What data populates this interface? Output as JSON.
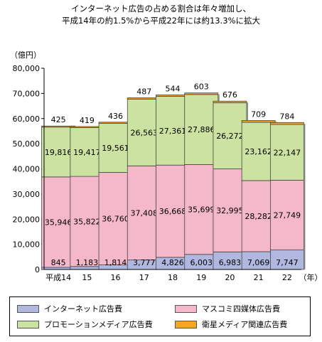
{
  "title": {
    "line1": "インターネット広告の占める割合は年々増加し、",
    "line2": "平成14年の約1.5%から平成22年には約13.3%に拡大"
  },
  "chart_data": {
    "type": "bar",
    "stacked": true,
    "ylabel": "（億円）",
    "xunit": "（年）",
    "ylim": [
      0,
      80000
    ],
    "yticks": [
      0,
      10000,
      20000,
      30000,
      40000,
      50000,
      60000,
      70000,
      80000
    ],
    "ytick_labels": [
      "0",
      "10,000",
      "20,000",
      "30,000",
      "40,000",
      "50,000",
      "60,000",
      "70,000",
      "80,000"
    ],
    "grid": false,
    "legend_position": "bottom",
    "categories": [
      "平成14",
      "15",
      "16",
      "17",
      "18",
      "19",
      "20",
      "21",
      "22"
    ],
    "series": [
      {
        "name": "インターネット広告費",
        "color": "#b0b8e0",
        "values": [
          845,
          1183,
          1814,
          3777,
          4826,
          6003,
          6983,
          7069,
          7747
        ],
        "labels": [
          "845",
          "1,183",
          "1,814",
          "3,777",
          "4,826",
          "6,003",
          "6,983",
          "7,069",
          "7,747"
        ]
      },
      {
        "name": "マスコミ四媒体広告費",
        "color": "#f5b8c8",
        "values": [
          35946,
          35822,
          36760,
          37408,
          36668,
          35699,
          32995,
          28282,
          27749
        ],
        "labels": [
          "35,946",
          "35,822",
          "36,760",
          "37,408",
          "36,668",
          "35,699",
          "32,995",
          "28,282",
          "27,749"
        ]
      },
      {
        "name": "プロモーションメディア広告費",
        "color": "#cce2a0",
        "values": [
          19816,
          19417,
          19561,
          26563,
          27361,
          27886,
          26272,
          23162,
          22147
        ],
        "labels": [
          "19,816",
          "19,417",
          "19,561",
          "26,563",
          "27,361",
          "27,886",
          "26,272",
          "23,162",
          "22,147"
        ]
      },
      {
        "name": "衛星メディア関連広告費",
        "color": "#f5a623",
        "values": [
          425,
          419,
          436,
          487,
          544,
          603,
          676,
          709,
          784
        ],
        "labels": [
          "425",
          "419",
          "436",
          "487",
          "544",
          "603",
          "676",
          "709",
          "784"
        ]
      }
    ]
  }
}
